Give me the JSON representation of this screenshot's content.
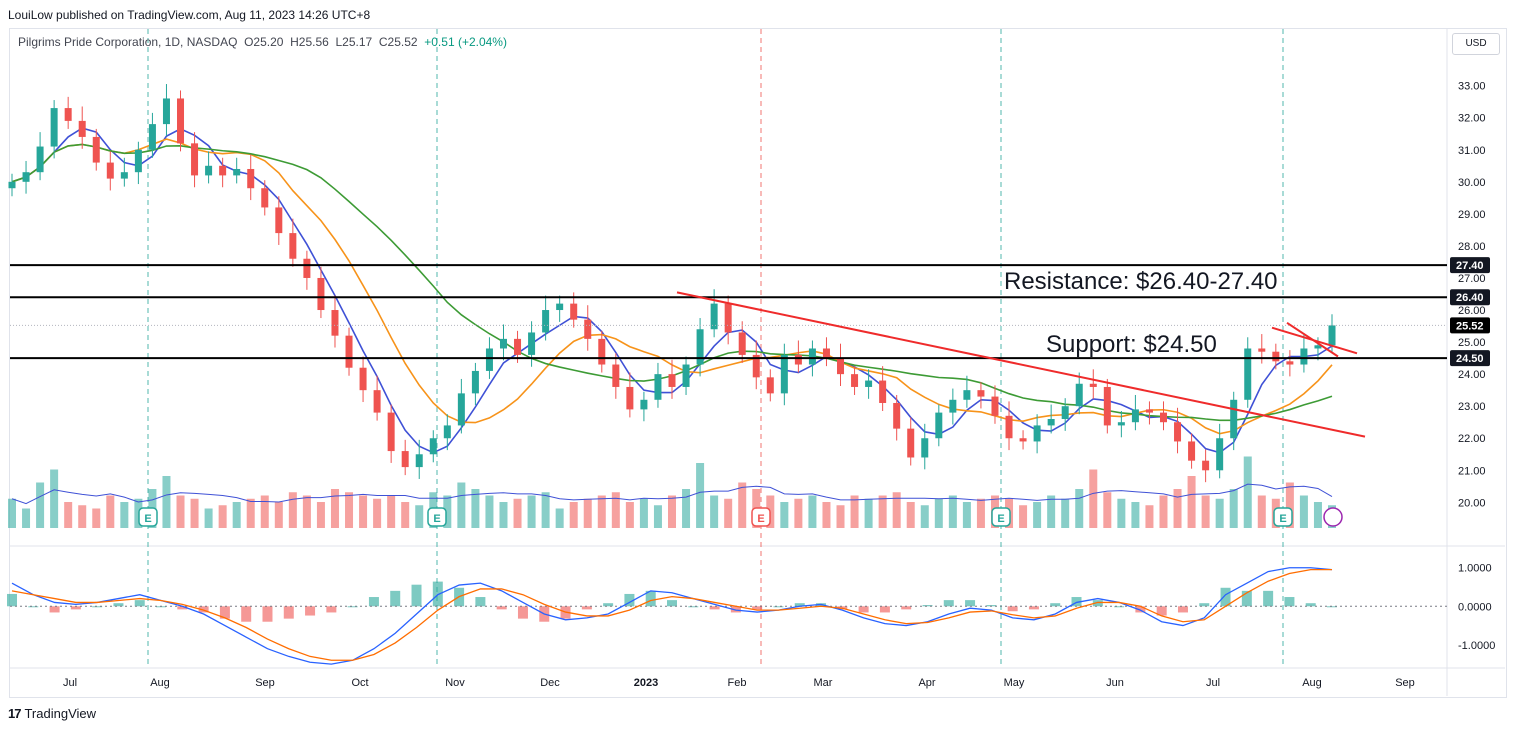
{
  "header": {
    "published_by": "LouiLow published on TradingView.com, Aug 11, 2023 14:26 UTC+8",
    "currency_button": "USD"
  },
  "legend": {
    "symbol": "Pilgrims Pride Corporation, 1D, NASDAQ",
    "open": "O25.20",
    "high": "H25.56",
    "low": "L25.17",
    "close": "C25.52",
    "change": "+0.51 (+2.04%)"
  },
  "footer": {
    "brand": "TradingView"
  },
  "colors": {
    "up": "#26a69a",
    "down": "#ef5350",
    "ma_fast": "#3f51d6",
    "ma_mid": "#f7931a",
    "ma_slow": "#3d9b35",
    "trendline": "#ef2b2b",
    "level_line": "#000000"
  },
  "annotations": {
    "resistance": "Resistance: $26.40-27.40",
    "support": "Support: $24.50"
  },
  "chart_data": {
    "type": "candlestick",
    "time_axis": [
      "Jul",
      "Aug",
      "Sep",
      "Oct",
      "Nov",
      "Dec",
      "2023",
      "Feb",
      "Mar",
      "Apr",
      "May",
      "Jun",
      "Jul",
      "Aug",
      "Sep"
    ],
    "price_axis": [
      "33.00",
      "32.00",
      "31.00",
      "30.00",
      "29.00",
      "28.00",
      "27.00",
      "26.00",
      "25.00",
      "24.00",
      "23.00",
      "22.00",
      "21.00",
      "20.00"
    ],
    "ylim": [
      19.2,
      33.8
    ],
    "price_labels": [
      {
        "text": "27.40",
        "value": 27.4,
        "style": "black"
      },
      {
        "text": "26.40",
        "value": 26.4,
        "style": "black"
      },
      {
        "text": "25.52",
        "value": 25.52,
        "style": "last"
      },
      {
        "text": "24.50",
        "value": 24.5,
        "style": "black"
      }
    ],
    "horizontal_levels": [
      27.4,
      26.4,
      24.5
    ],
    "earnings_markers": [
      "E",
      "E",
      "E",
      "E",
      "E"
    ],
    "close_series": [
      30.0,
      30.3,
      31.1,
      32.3,
      31.9,
      31.4,
      30.6,
      30.1,
      30.3,
      31.0,
      31.8,
      32.6,
      31.2,
      30.2,
      30.5,
      30.2,
      30.4,
      29.8,
      29.2,
      28.4,
      27.6,
      27.0,
      26.0,
      25.2,
      24.2,
      23.5,
      22.8,
      21.6,
      21.1,
      21.5,
      22.0,
      22.4,
      23.4,
      24.1,
      24.8,
      25.1,
      24.6,
      25.3,
      26.0,
      26.2,
      25.7,
      25.1,
      24.3,
      23.6,
      22.9,
      23.2,
      24.0,
      23.6,
      24.3,
      25.4,
      26.2,
      25.3,
      24.6,
      23.9,
      23.4,
      24.6,
      24.3,
      24.8,
      24.5,
      24.0,
      23.6,
      23.8,
      23.1,
      22.3,
      21.4,
      22.0,
      22.8,
      23.2,
      23.5,
      23.3,
      22.7,
      22.0,
      21.9,
      22.4,
      22.6,
      23.0,
      23.7,
      23.6,
      22.4,
      22.5,
      22.9,
      22.8,
      22.5,
      21.9,
      21.3,
      21.0,
      22.0,
      23.2,
      24.8,
      24.7,
      24.4,
      24.3,
      24.8,
      24.9,
      25.52
    ],
    "volume_series": [
      0.45,
      0.3,
      0.7,
      0.9,
      0.4,
      0.35,
      0.3,
      0.5,
      0.4,
      0.45,
      0.6,
      0.8,
      0.5,
      0.45,
      0.3,
      0.35,
      0.4,
      0.45,
      0.5,
      0.4,
      0.55,
      0.5,
      0.4,
      0.6,
      0.55,
      0.5,
      0.45,
      0.5,
      0.4,
      0.35,
      0.55,
      0.5,
      0.7,
      0.6,
      0.5,
      0.4,
      0.45,
      0.5,
      0.55,
      0.3,
      0.4,
      0.45,
      0.5,
      0.55,
      0.4,
      0.45,
      0.35,
      0.5,
      0.6,
      1.0,
      0.5,
      0.45,
      0.7,
      0.6,
      0.5,
      0.4,
      0.45,
      0.5,
      0.4,
      0.35,
      0.5,
      0.45,
      0.5,
      0.55,
      0.4,
      0.35,
      0.45,
      0.5,
      0.4,
      0.45,
      0.5,
      0.45,
      0.35,
      0.4,
      0.5,
      0.45,
      0.6,
      0.9,
      0.55,
      0.45,
      0.4,
      0.35,
      0.5,
      0.6,
      0.8,
      0.5,
      0.45,
      0.6,
      1.1,
      0.5,
      0.45,
      0.7,
      0.5,
      0.4,
      0.35
    ],
    "indicator_axis": [
      "1.0000",
      "0.0000",
      "-1.0000"
    ],
    "indicator_ylim": [
      -1.6,
      1.2
    ],
    "macd_line": [
      0.6,
      0.3,
      0.1,
      0.05,
      0.1,
      0.2,
      0.3,
      0.15,
      0.0,
      -0.2,
      -0.5,
      -0.8,
      -1.1,
      -1.3,
      -1.45,
      -1.5,
      -1.4,
      -1.1,
      -0.7,
      -0.2,
      0.3,
      0.55,
      0.6,
      0.4,
      0.1,
      -0.2,
      -0.35,
      -0.3,
      -0.2,
      0.1,
      0.4,
      0.35,
      0.2,
      0.05,
      -0.1,
      -0.15,
      -0.1,
      0.0,
      0.05,
      -0.1,
      -0.3,
      -0.45,
      -0.5,
      -0.4,
      -0.2,
      -0.05,
      -0.1,
      -0.3,
      -0.35,
      -0.2,
      0.1,
      0.2,
      0.1,
      -0.1,
      -0.4,
      -0.5,
      -0.3,
      0.3,
      0.6,
      0.9,
      1.0,
      1.0,
      0.95
    ],
    "signal_line": [
      0.4,
      0.3,
      0.2,
      0.1,
      0.1,
      0.15,
      0.2,
      0.15,
      0.05,
      -0.1,
      -0.3,
      -0.55,
      -0.85,
      -1.1,
      -1.3,
      -1.4,
      -1.4,
      -1.25,
      -0.95,
      -0.55,
      -0.1,
      0.25,
      0.45,
      0.45,
      0.3,
      0.05,
      -0.15,
      -0.25,
      -0.25,
      -0.1,
      0.15,
      0.25,
      0.2,
      0.1,
      0.0,
      -0.1,
      -0.1,
      -0.05,
      0.0,
      -0.05,
      -0.2,
      -0.35,
      -0.45,
      -0.42,
      -0.3,
      -0.15,
      -0.12,
      -0.22,
      -0.3,
      -0.25,
      -0.05,
      0.1,
      0.1,
      0.0,
      -0.25,
      -0.4,
      -0.35,
      0.0,
      0.35,
      0.65,
      0.85,
      0.95,
      0.95
    ]
  }
}
